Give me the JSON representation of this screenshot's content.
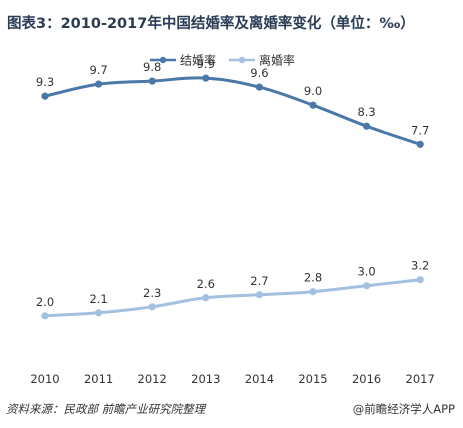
{
  "title": "图表3：2010-2017年中国结婚率及离婚率变化（单位：‰）",
  "footer": {
    "source": "资料来源：民政部 前瞻产业研究院整理",
    "brand": "@前瞻经济学人APP"
  },
  "colors": {
    "marriage": "#4a78a8",
    "divorce": "#a3c0e0",
    "title": "#2a3d55"
  },
  "chart_data": {
    "type": "line",
    "title": "图表3：2010-2017年中国结婚率及离婚率变化（单位：‰）",
    "xlabel": "",
    "ylabel": "",
    "grid": false,
    "legend_position": "top-center",
    "categories": [
      "2010",
      "2011",
      "2012",
      "2013",
      "2014",
      "2015",
      "2016",
      "2017"
    ],
    "ylim": [
      0,
      11
    ],
    "series": [
      {
        "name": "结婚率",
        "values": [
          9.3,
          9.7,
          9.8,
          9.9,
          9.6,
          9.0,
          8.3,
          7.7
        ],
        "labels": [
          "9.3",
          "9.7",
          "9.8",
          "9.9",
          "9.6",
          "9.0",
          "8.3",
          "7.7"
        ]
      },
      {
        "name": "离婚率",
        "values": [
          2.0,
          2.1,
          2.3,
          2.6,
          2.7,
          2.8,
          3.0,
          3.2
        ],
        "labels": [
          "2.0",
          "2.1",
          "2.3",
          "2.6",
          "2.7",
          "2.8",
          "3.0",
          "3.2"
        ]
      }
    ]
  }
}
